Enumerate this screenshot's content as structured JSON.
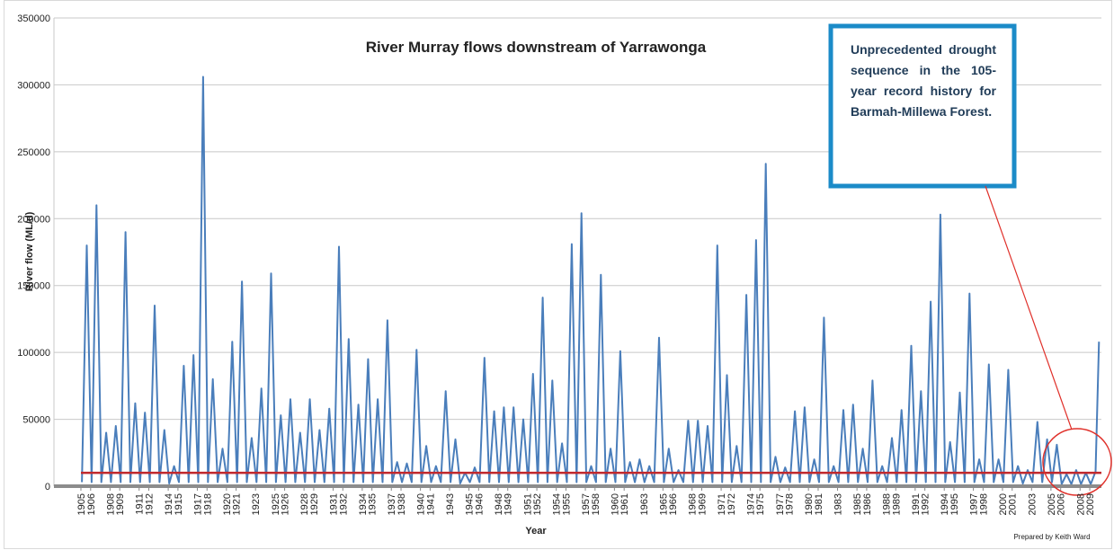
{
  "chart_data": {
    "type": "line",
    "title": "River Murray flows downstream of Yarrawonga",
    "y_label": "River flow (ML/d)",
    "x_label": "Year",
    "credit": "Prepared by Keith Ward",
    "annotation": "Unprecedented drought sequence in the 105-year record history for Barmah-Millewa Forest.",
    "grid": true,
    "xlim": [
      1905,
      2010.2
    ],
    "ylim": [
      0,
      350000
    ],
    "yticks": [
      0,
      50000,
      100000,
      150000,
      200000,
      250000,
      300000,
      350000
    ],
    "xticks": [
      1905,
      1906,
      1908,
      1909,
      1911,
      1912,
      1914,
      1915,
      1917,
      1918,
      1920,
      1921,
      1923,
      1925,
      1926,
      1928,
      1929,
      1931,
      1932,
      1934,
      1935,
      1937,
      1938,
      1940,
      1941,
      1943,
      1945,
      1946,
      1948,
      1949,
      1951,
      1952,
      1954,
      1955,
      1957,
      1958,
      1960,
      1961,
      1963,
      1965,
      1966,
      1968,
      1969,
      1971,
      1972,
      1974,
      1975,
      1977,
      1978,
      1980,
      1981,
      1983,
      1985,
      1986,
      1988,
      1989,
      1991,
      1992,
      1994,
      1995,
      1997,
      1998,
      2000,
      2001,
      2003,
      2005,
      2006,
      2008,
      2009
    ],
    "reference_line": 10000,
    "reference_color": "#c0282d",
    "x": [
      1905.1,
      1905.6,
      1906.1,
      1906.6,
      1907.1,
      1907.6,
      1908.1,
      1908.6,
      1909.1,
      1909.6,
      1910.1,
      1910.6,
      1911.1,
      1911.6,
      1912.1,
      1912.6,
      1913.1,
      1913.6,
      1914.1,
      1914.6,
      1915.1,
      1915.6,
      1916.1,
      1916.6,
      1917.1,
      1917.6,
      1918.1,
      1918.6,
      1919.1,
      1919.6,
      1920.1,
      1920.6,
      1921.1,
      1921.6,
      1922.1,
      1922.6,
      1923.1,
      1923.6,
      1924.1,
      1924.6,
      1925.1,
      1925.6,
      1926.1,
      1926.6,
      1927.1,
      1927.6,
      1928.1,
      1928.6,
      1929.1,
      1929.6,
      1930.1,
      1930.6,
      1931.1,
      1931.6,
      1932.1,
      1932.6,
      1933.1,
      1933.6,
      1934.1,
      1934.6,
      1935.1,
      1935.6,
      1936.1,
      1936.6,
      1937.1,
      1937.6,
      1938.1,
      1938.6,
      1939.1,
      1939.6,
      1940.1,
      1940.6,
      1941.1,
      1941.6,
      1942.1,
      1942.6,
      1943.1,
      1943.6,
      1944.1,
      1944.6,
      1945.1,
      1945.6,
      1946.1,
      1946.6,
      1947.1,
      1947.6,
      1948.1,
      1948.6,
      1949.1,
      1949.6,
      1950.1,
      1950.6,
      1951.1,
      1951.6,
      1952.1,
      1952.6,
      1953.1,
      1953.6,
      1954.1,
      1954.6,
      1955.1,
      1955.6,
      1956.1,
      1956.6,
      1957.1,
      1957.6,
      1958.1,
      1958.6,
      1959.1,
      1959.6,
      1960.1,
      1960.6,
      1961.1,
      1961.6,
      1962.1,
      1962.6,
      1963.1,
      1963.6,
      1964.1,
      1964.6,
      1965.1,
      1965.6,
      1966.1,
      1966.6,
      1967.1,
      1967.6,
      1968.1,
      1968.6,
      1969.1,
      1969.6,
      1970.1,
      1970.6,
      1971.1,
      1971.6,
      1972.1,
      1972.6,
      1973.1,
      1973.6,
      1974.1,
      1974.6,
      1975.1,
      1975.6,
      1976.1,
      1976.6,
      1977.1,
      1977.6,
      1978.1,
      1978.6,
      1979.1,
      1979.6,
      1980.1,
      1980.6,
      1981.1,
      1981.6,
      1982.1,
      1982.6,
      1983.1,
      1983.6,
      1984.1,
      1984.6,
      1985.1,
      1985.6,
      1986.1,
      1986.6,
      1987.1,
      1987.6,
      1988.1,
      1988.6,
      1989.1,
      1989.6,
      1990.1,
      1990.6,
      1991.1,
      1991.6,
      1992.1,
      1992.6,
      1993.1,
      1993.6,
      1994.1,
      1994.6,
      1995.1,
      1995.6,
      1996.1,
      1996.6,
      1997.1,
      1997.6,
      1998.1,
      1998.6,
      1999.1,
      1999.6,
      2000.1,
      2000.6,
      2001.1,
      2001.6,
      2002.1,
      2002.6,
      2003.1,
      2003.6,
      2004.1,
      2004.6,
      2005.1,
      2005.6,
      2006.1,
      2006.6,
      2007.1,
      2007.6,
      2008.1,
      2008.6,
      2009.1,
      2009.6,
      2009.95
    ],
    "series": [
      {
        "name": "River flow",
        "color": "#4a7ebb",
        "values": [
          3000,
          180000,
          3000,
          210000,
          3000,
          40000,
          3000,
          45000,
          3000,
          190000,
          3000,
          62000,
          3000,
          55000,
          3000,
          135000,
          3000,
          42000,
          2000,
          15000,
          3000,
          90000,
          3000,
          98000,
          3000,
          306000,
          3000,
          80000,
          3000,
          28000,
          3000,
          108000,
          3000,
          153000,
          3000,
          36000,
          3000,
          73000,
          3000,
          159000,
          3000,
          53000,
          3000,
          65000,
          3000,
          40000,
          3000,
          65000,
          3000,
          42000,
          3000,
          58000,
          3000,
          179000,
          3000,
          110000,
          3000,
          61000,
          3000,
          95000,
          3000,
          65000,
          3000,
          124000,
          3000,
          18000,
          3000,
          17000,
          3000,
          102000,
          3000,
          30000,
          3000,
          15000,
          3000,
          71000,
          3000,
          35000,
          2000,
          10000,
          3000,
          14000,
          3000,
          96000,
          3000,
          56000,
          3000,
          59000,
          3000,
          59000,
          3000,
          50000,
          3000,
          84000,
          3000,
          141000,
          3000,
          79000,
          3000,
          32000,
          3000,
          181000,
          3000,
          204000,
          3000,
          15000,
          3000,
          158000,
          3000,
          28000,
          3000,
          101000,
          3000,
          18000,
          3000,
          20000,
          3000,
          15000,
          3000,
          111000,
          3000,
          28000,
          3000,
          12000,
          3000,
          49000,
          3000,
          49000,
          3000,
          45000,
          3000,
          180000,
          3000,
          83000,
          3000,
          30000,
          3000,
          143000,
          3000,
          184000,
          3000,
          241000,
          3000,
          22000,
          3000,
          14000,
          3000,
          56000,
          3000,
          59000,
          3000,
          20000,
          3000,
          126000,
          3000,
          15000,
          3000,
          57000,
          3000,
          61000,
          3000,
          28000,
          3000,
          79000,
          3000,
          15000,
          3000,
          36000,
          3000,
          57000,
          3000,
          105000,
          3000,
          71000,
          3000,
          138000,
          3000,
          203000,
          3000,
          33000,
          3000,
          70000,
          3000,
          144000,
          3000,
          20000,
          3000,
          91000,
          3000,
          20000,
          3000,
          87000,
          3000,
          15000,
          2000,
          12000,
          3000,
          48000,
          3000,
          35000,
          3000,
          31000,
          1500,
          9000,
          1500,
          12000,
          1500,
          10000,
          1500,
          11000,
          108000
        ]
      }
    ]
  }
}
